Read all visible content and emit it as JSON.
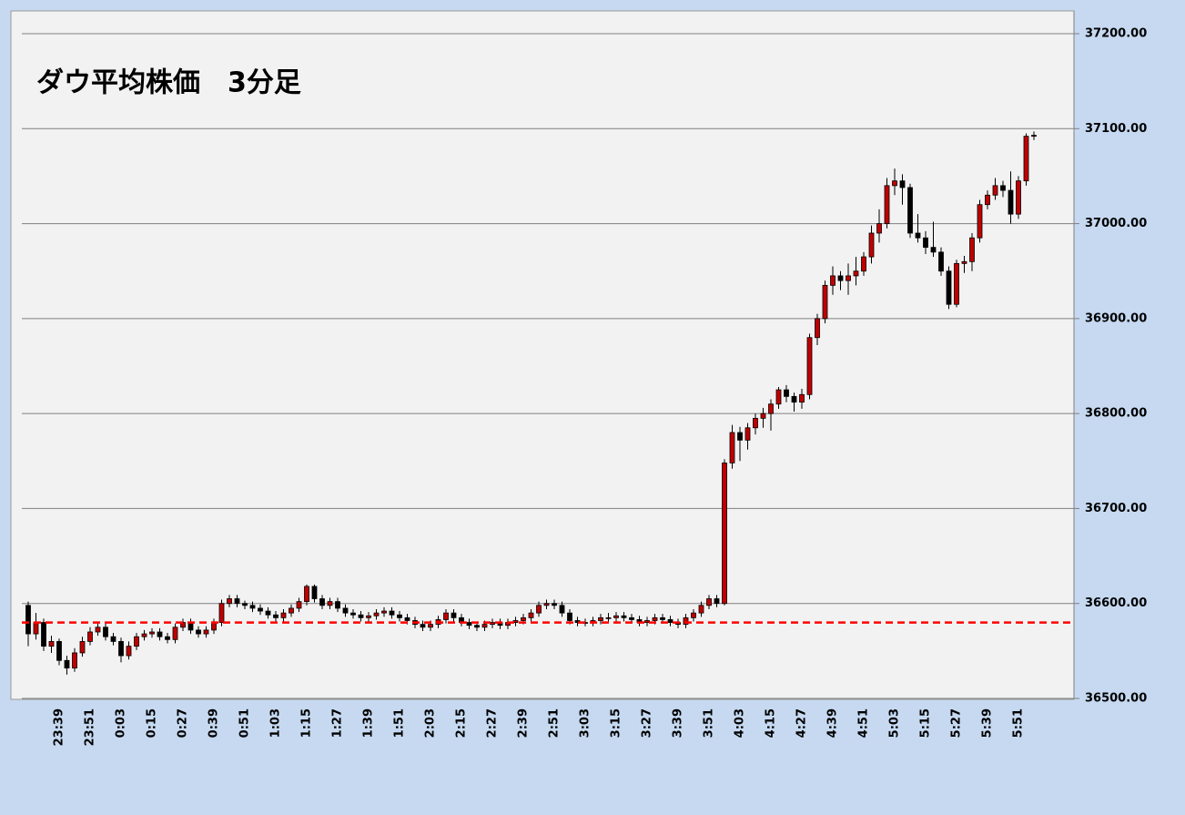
{
  "chart_data": {
    "type": "candlestick",
    "title": "ダウ平均株価　3分足",
    "categories": [
      null,
      null,
      null,
      null,
      "23:39",
      null,
      null,
      null,
      "23:51",
      null,
      null,
      null,
      "0:03",
      null,
      null,
      null,
      "0:15",
      null,
      null,
      null,
      "0:27",
      null,
      null,
      null,
      "0:39",
      null,
      null,
      null,
      "0:51",
      null,
      null,
      null,
      "1:03",
      null,
      null,
      null,
      "1:15",
      null,
      null,
      null,
      "1:27",
      null,
      null,
      null,
      "1:39",
      null,
      null,
      null,
      "1:51",
      null,
      null,
      null,
      "2:03",
      null,
      null,
      null,
      "2:15",
      null,
      null,
      null,
      "2:27",
      null,
      null,
      null,
      "2:39",
      null,
      null,
      null,
      "2:51",
      null,
      null,
      null,
      "3:03",
      null,
      null,
      null,
      "3:15",
      null,
      null,
      null,
      "3:27",
      null,
      null,
      null,
      "3:39",
      null,
      null,
      null,
      "3:51",
      null,
      null,
      null,
      "4:03",
      null,
      null,
      null,
      "4:15",
      null,
      null,
      null,
      "4:27",
      null,
      null,
      null,
      "4:39",
      null,
      null,
      null,
      "4:51",
      null,
      null,
      null,
      "5:03",
      null,
      null,
      null,
      "5:15",
      null,
      null,
      null,
      "5:27",
      null,
      null,
      null,
      "5:39",
      null,
      null,
      null,
      "5:51",
      null,
      null
    ],
    "ohlc": [
      [
        36598,
        36602,
        36555,
        36568
      ],
      [
        36568,
        36590,
        36562,
        36580
      ],
      [
        36580,
        36584,
        36550,
        36555
      ],
      [
        36555,
        36566,
        36548,
        36560
      ],
      [
        36560,
        36563,
        36535,
        36540
      ],
      [
        36540,
        36545,
        36525,
        36532
      ],
      [
        36532,
        36553,
        36528,
        36548
      ],
      [
        36548,
        36565,
        36544,
        36560
      ],
      [
        36560,
        36575,
        36556,
        36570
      ],
      [
        36570,
        36580,
        36566,
        36575
      ],
      [
        36575,
        36579,
        36561,
        36565
      ],
      [
        36565,
        36569,
        36556,
        36560
      ],
      [
        36560,
        36564,
        36538,
        36545
      ],
      [
        36545,
        36560,
        36541,
        36555
      ],
      [
        36555,
        36569,
        36551,
        36565
      ],
      [
        36565,
        36572,
        36561,
        36568
      ],
      [
        36568,
        36574,
        36564,
        36570
      ],
      [
        36570,
        36574,
        36561,
        36565
      ],
      [
        36565,
        36569,
        36558,
        36562
      ],
      [
        36562,
        36579,
        36558,
        36575
      ],
      [
        36575,
        36584,
        36571,
        36580
      ],
      [
        36580,
        36584,
        36568,
        36572
      ],
      [
        36572,
        36576,
        36564,
        36568
      ],
      [
        36568,
        36576,
        36564,
        36572
      ],
      [
        36572,
        36584,
        36568,
        36580
      ],
      [
        36580,
        36604,
        36576,
        36600
      ],
      [
        36600,
        36609,
        36596,
        36605
      ],
      [
        36605,
        36609,
        36596,
        36600
      ],
      [
        36600,
        36603,
        36594,
        36598
      ],
      [
        36598,
        36602,
        36591,
        36595
      ],
      [
        36595,
        36599,
        36588,
        36592
      ],
      [
        36592,
        36596,
        36584,
        36588
      ],
      [
        36588,
        36592,
        36581,
        36585
      ],
      [
        36585,
        36594,
        36581,
        36590
      ],
      [
        36590,
        36599,
        36586,
        36595
      ],
      [
        36595,
        36606,
        36591,
        36602
      ],
      [
        36602,
        36620,
        36598,
        36618
      ],
      [
        36618,
        36620,
        36601,
        36605
      ],
      [
        36605,
        36609,
        36594,
        36598
      ],
      [
        36598,
        36606,
        36594,
        36602
      ],
      [
        36602,
        36606,
        36591,
        36595
      ],
      [
        36595,
        36599,
        36586,
        36590
      ],
      [
        36590,
        36594,
        36584,
        36588
      ],
      [
        36588,
        36592,
        36581,
        36585
      ],
      [
        36585,
        36591,
        36581,
        36587
      ],
      [
        36587,
        36594,
        36583,
        36590
      ],
      [
        36590,
        36596,
        36586,
        36592
      ],
      [
        36592,
        36596,
        36584,
        36588
      ],
      [
        36588,
        36592,
        36581,
        36585
      ],
      [
        36585,
        36589,
        36578,
        36582
      ],
      [
        36582,
        36586,
        36574,
        36578
      ],
      [
        36578,
        36582,
        36571,
        36575
      ],
      [
        36575,
        36582,
        36571,
        36578
      ],
      [
        36578,
        36587,
        36574,
        36583
      ],
      [
        36583,
        36594,
        36579,
        36590
      ],
      [
        36590,
        36594,
        36581,
        36585
      ],
      [
        36585,
        36589,
        36576,
        36580
      ],
      [
        36580,
        36584,
        36573,
        36577
      ],
      [
        36577,
        36581,
        36571,
        36575
      ],
      [
        36575,
        36582,
        36571,
        36578
      ],
      [
        36578,
        36584,
        36574,
        36580
      ],
      [
        36580,
        36584,
        36573,
        36577
      ],
      [
        36577,
        36584,
        36573,
        36580
      ],
      [
        36580,
        36586,
        36576,
        36582
      ],
      [
        36582,
        36589,
        36578,
        36585
      ],
      [
        36585,
        36594,
        36581,
        36590
      ],
      [
        36590,
        36602,
        36586,
        36598
      ],
      [
        36598,
        36604,
        36594,
        36600
      ],
      [
        36600,
        36604,
        36594,
        36598
      ],
      [
        36598,
        36602,
        36586,
        36590
      ],
      [
        36590,
        36594,
        36578,
        36582
      ],
      [
        36582,
        36586,
        36576,
        36580
      ],
      [
        36580,
        36584,
        36576,
        36580
      ],
      [
        36580,
        36586,
        36576,
        36582
      ],
      [
        36582,
        36589,
        36578,
        36585
      ],
      [
        36585,
        36590,
        36581,
        36585
      ],
      [
        36585,
        36591,
        36581,
        36587
      ],
      [
        36587,
        36591,
        36581,
        36585
      ],
      [
        36585,
        36589,
        36579,
        36583
      ],
      [
        36583,
        36587,
        36576,
        36580
      ],
      [
        36580,
        36586,
        36576,
        36582
      ],
      [
        36582,
        36589,
        36578,
        36585
      ],
      [
        36585,
        36589,
        36579,
        36583
      ],
      [
        36583,
        36587,
        36576,
        36580
      ],
      [
        36580,
        36584,
        36574,
        36578
      ],
      [
        36578,
        36589,
        36574,
        36585
      ],
      [
        36585,
        36594,
        36581,
        36590
      ],
      [
        36590,
        36602,
        36586,
        36598
      ],
      [
        36598,
        36609,
        36594,
        36605
      ],
      [
        36605,
        36609,
        36596,
        36600
      ],
      [
        36600,
        36752,
        36598,
        36748
      ],
      [
        36748,
        36788,
        36742,
        36780
      ],
      [
        36780,
        36786,
        36750,
        36772
      ],
      [
        36772,
        36790,
        36762,
        36785
      ],
      [
        36785,
        36800,
        36778,
        36795
      ],
      [
        36795,
        36806,
        36785,
        36800
      ],
      [
        36800,
        36815,
        36782,
        36810
      ],
      [
        36810,
        36828,
        36805,
        36825
      ],
      [
        36825,
        36830,
        36812,
        36818
      ],
      [
        36818,
        36822,
        36802,
        36812
      ],
      [
        36812,
        36826,
        36805,
        36820
      ],
      [
        36820,
        36884,
        36815,
        36880
      ],
      [
        36880,
        36905,
        36872,
        36900
      ],
      [
        36900,
        36940,
        36895,
        36935
      ],
      [
        36935,
        36955,
        36925,
        36945
      ],
      [
        36945,
        36950,
        36930,
        36940
      ],
      [
        36940,
        36958,
        36925,
        36945
      ],
      [
        36945,
        36965,
        36935,
        36950
      ],
      [
        36950,
        36970,
        36945,
        36965
      ],
      [
        36965,
        36998,
        36958,
        36990
      ],
      [
        36990,
        37015,
        36980,
        37000
      ],
      [
        37000,
        37048,
        36995,
        37040
      ],
      [
        37040,
        37058,
        37030,
        37045
      ],
      [
        37045,
        37052,
        37020,
        37038
      ],
      [
        37038,
        37042,
        36985,
        36990
      ],
      [
        36990,
        37010,
        36980,
        36985
      ],
      [
        36985,
        36992,
        36968,
        36975
      ],
      [
        36975,
        37002,
        36965,
        36970
      ],
      [
        36970,
        36975,
        36945,
        36950
      ],
      [
        36950,
        36955,
        36910,
        36915
      ],
      [
        36915,
        36962,
        36912,
        36958
      ],
      [
        36958,
        36966,
        36948,
        36960
      ],
      [
        36960,
        36990,
        36950,
        36985
      ],
      [
        36985,
        37025,
        36980,
        37020
      ],
      [
        37020,
        37035,
        37015,
        37030
      ],
      [
        37030,
        37048,
        37025,
        37040
      ],
      [
        37040,
        37045,
        37028,
        37035
      ],
      [
        37035,
        37055,
        37000,
        37010
      ],
      [
        37010,
        37050,
        37005,
        37045
      ],
      [
        37045,
        37095,
        37040,
        37092
      ],
      [
        37092,
        37097,
        37088,
        37093
      ]
    ],
    "up_color": "#c00000",
    "down_color": "#000000",
    "title_color": "#e46c0a",
    "reference_line": {
      "value": 36580,
      "color": "#ff0000"
    },
    "ylim": [
      36500,
      37200
    ],
    "yticks": [
      {
        "value": 36500,
        "label": "36500.00"
      },
      {
        "value": 36600,
        "label": "36600.00"
      },
      {
        "value": 36700,
        "label": "36700.00"
      },
      {
        "value": 36800,
        "label": "36800.00"
      },
      {
        "value": 36900,
        "label": "36900.00"
      },
      {
        "value": 37000,
        "label": "37000.00"
      },
      {
        "value": 37100,
        "label": "37100.00"
      },
      {
        "value": 37200,
        "label": "37200.00"
      }
    ],
    "grid": true
  }
}
